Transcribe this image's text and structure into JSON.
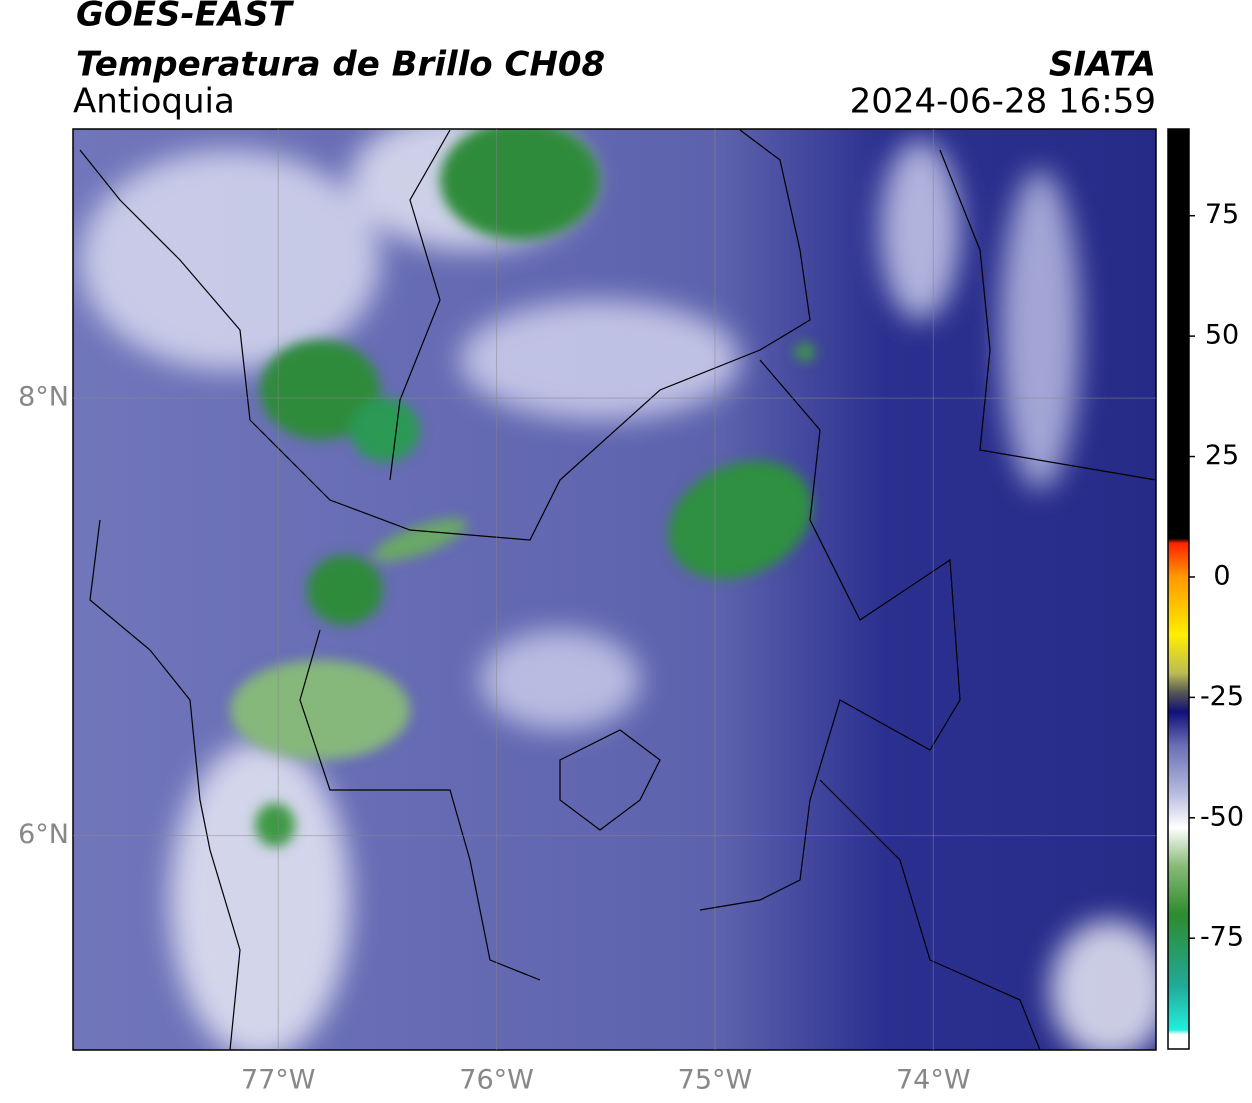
{
  "header": {
    "title": "GOES-EAST",
    "subtitle": "Temperatura de Brillo CH08",
    "region": "Antioquia",
    "source": "SIATA",
    "timestamp": "2024-06-28 16:59"
  },
  "map": {
    "lonlim": [
      -77.94,
      -72.98
    ],
    "latlim": [
      5.02,
      9.23
    ],
    "xticks": [
      {
        "value": -77,
        "label": "77°W"
      },
      {
        "value": -76,
        "label": "76°W"
      },
      {
        "value": -75,
        "label": "75°W"
      },
      {
        "value": -74,
        "label": "74°W"
      }
    ],
    "yticks": [
      {
        "value": 8,
        "label": "8°N"
      },
      {
        "value": 6,
        "label": "6°N"
      }
    ],
    "grid": true
  },
  "colorbar": {
    "lim": [
      -98,
      93
    ],
    "ticks": [
      75,
      50,
      25,
      0,
      -25,
      -50,
      -75
    ],
    "colormap": [
      [
        -98,
        "#ffffff"
      ],
      [
        -95,
        "#ffffff"
      ],
      [
        -94,
        "#22eedd"
      ],
      [
        -85,
        "#22aa99"
      ],
      [
        -70,
        "#2e8b2e"
      ],
      [
        -60,
        "#88bb77"
      ],
      [
        -52,
        "#ffffff"
      ],
      [
        -45,
        "#b8bce0"
      ],
      [
        -35,
        "#6a6fb5"
      ],
      [
        -28,
        "#101078"
      ],
      [
        -24,
        "#555555"
      ],
      [
        -20,
        "#bbbb55"
      ],
      [
        -12,
        "#ffee00"
      ],
      [
        0,
        "#ff9900"
      ],
      [
        7,
        "#ff2200"
      ],
      [
        8,
        "#000000"
      ],
      [
        93,
        "#000000"
      ]
    ]
  }
}
